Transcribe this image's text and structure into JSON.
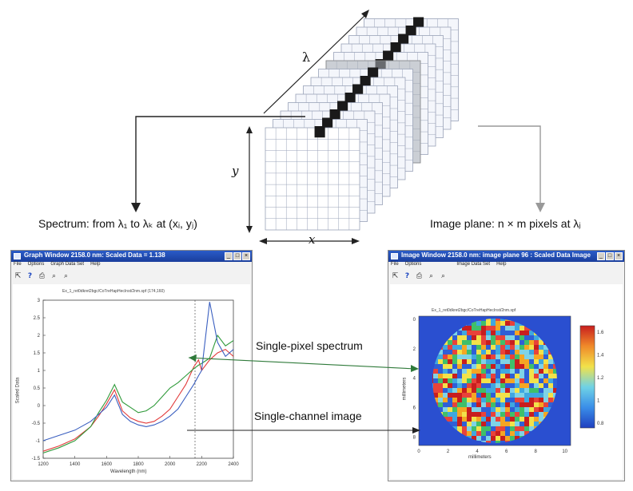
{
  "captions": {
    "lambda_axis": "λ",
    "y_axis": "y",
    "x_axis": "x",
    "spectrum": "Spectrum: from λ₁ to λₖ at (xᵢ, yⱼ)",
    "image_plane": "Image plane: n × m pixels at λⱼ",
    "single_pixel": "Single-pixel spectrum",
    "single_channel": "Single-channel image"
  },
  "graph_window": {
    "title": "Graph Window 2158.0 nm: Scaled Data = 1.138",
    "menu": [
      "File",
      "Options",
      "Graph Data Set",
      "Help"
    ],
    "toolbar_icons": [
      "cursor-icon",
      "help-icon",
      "print-icon",
      "zoom-in-icon",
      "zoom-out-icon"
    ],
    "window_buttons": [
      "_",
      "□",
      "×"
    ],
    "subtitle": "Ex_1_ret0dkret2bgc/CoTreHapHecInst/2nm.spf (174,160)",
    "ylabel": "Scaled Data",
    "xlabel": "Wavelength (nm)",
    "y_ticks": [
      "3",
      "2.5",
      "2",
      "1.5",
      "1",
      "0.5",
      "0",
      "-0.5",
      "-1",
      "-1.5"
    ],
    "x_ticks": [
      "1200",
      "1400",
      "1600",
      "1800",
      "2000",
      "2200",
      "2400"
    ]
  },
  "image_window": {
    "title": "Image Window 2158.0 nm: image plane 96 : Scaled Data Image",
    "menu": [
      "File",
      "Options",
      "Image Data Set",
      "Help"
    ],
    "toolbar_icons": [
      "cursor-icon",
      "help-icon",
      "print-icon",
      "zoom-in-icon",
      "zoom-out-icon"
    ],
    "window_buttons": [
      "_",
      "□",
      "×"
    ],
    "subtitle": "Ex_1_ret0dkret2bgc/CoTreHapHecInst/2nm.spf",
    "ylabel": "millimeters",
    "xlabel": "millimeters",
    "x_ticks": [
      "0",
      "2",
      "4",
      "6",
      "8",
      "10"
    ],
    "y_ticks": [
      "0",
      "2",
      "4",
      "6",
      "8"
    ],
    "colorbar_ticks": [
      "1.6",
      "1.4",
      "1.2",
      "1",
      "0.8"
    ]
  },
  "chart_data": {
    "type": "line",
    "xlabel": "Wavelength (nm)",
    "ylabel": "Scaled Data",
    "xlim": [
      1200,
      2400
    ],
    "ylim": [
      -1.5,
      3
    ],
    "marker_x": 2158,
    "series": [
      {
        "color": "#e23b3b",
        "x": [
          1200,
          1300,
          1400,
          1500,
          1550,
          1600,
          1650,
          1700,
          1750,
          1800,
          1850,
          1900,
          1950,
          2000,
          2050,
          2100,
          2150,
          2180,
          2200,
          2250,
          2300,
          2350,
          2400
        ],
        "y": [
          -1.3,
          -1.15,
          -0.95,
          -0.6,
          -0.3,
          0.05,
          0.45,
          -0.15,
          -0.35,
          -0.45,
          -0.5,
          -0.45,
          -0.3,
          -0.1,
          0.25,
          0.6,
          1.1,
          1.3,
          1.0,
          1.3,
          1.5,
          1.6,
          1.4
        ]
      },
      {
        "color": "#2f9a3a",
        "x": [
          1200,
          1300,
          1400,
          1500,
          1550,
          1600,
          1650,
          1700,
          1750,
          1800,
          1850,
          1900,
          1950,
          2000,
          2050,
          2100,
          2150,
          2180,
          2200,
          2250,
          2300,
          2350,
          2400
        ],
        "y": [
          -1.35,
          -1.2,
          -1.0,
          -0.6,
          -0.2,
          0.15,
          0.6,
          0.1,
          -0.05,
          -0.2,
          -0.15,
          0.0,
          0.25,
          0.5,
          0.65,
          0.85,
          1.05,
          1.15,
          1.2,
          1.35,
          2.0,
          1.7,
          1.85
        ]
      },
      {
        "color": "#3a5fc0",
        "x": [
          1200,
          1300,
          1400,
          1500,
          1550,
          1600,
          1650,
          1700,
          1750,
          1800,
          1850,
          1900,
          1950,
          2000,
          2050,
          2100,
          2150,
          2180,
          2200,
          2250,
          2300,
          2350,
          2400
        ],
        "y": [
          -1.0,
          -0.85,
          -0.7,
          -0.45,
          -0.25,
          -0.05,
          0.3,
          -0.25,
          -0.45,
          -0.55,
          -0.6,
          -0.55,
          -0.45,
          -0.3,
          -0.1,
          0.25,
          0.6,
          0.85,
          1.0,
          2.95,
          1.8,
          1.4,
          1.6
        ]
      }
    ]
  },
  "colors": {
    "titlebar": "#1f4bb3",
    "arrow_dark": "#222222",
    "arrow_light": "#999999",
    "grid_line": "#9aa3b8",
    "diagonal_fill": "#1a1a1a",
    "map_background": "#2a4fd0"
  }
}
